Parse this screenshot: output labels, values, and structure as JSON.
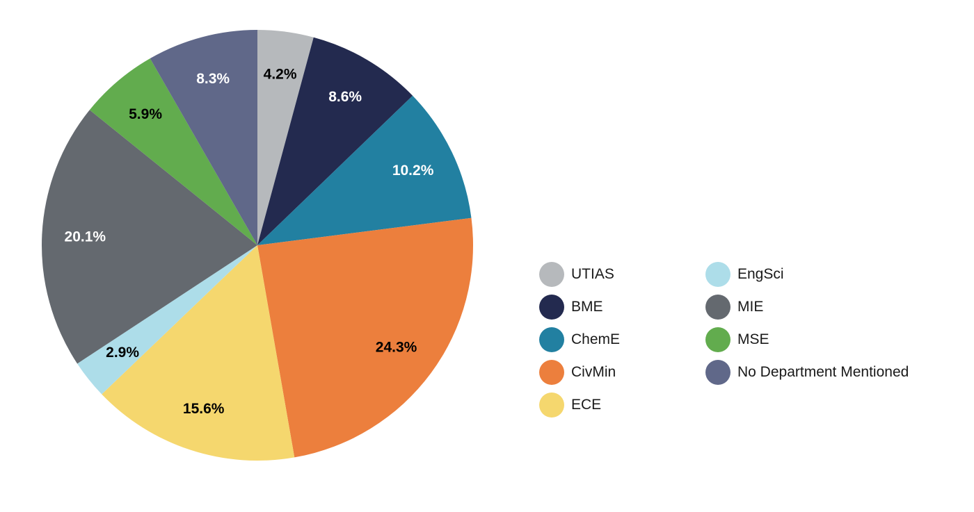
{
  "chart_data": {
    "type": "pie",
    "title": "",
    "legend_position": "right",
    "slices": [
      {
        "label": "UTIAS",
        "value": 4.2,
        "value_label": "4.2%",
        "color": "#b6b9bc",
        "label_color": "#000000"
      },
      {
        "label": "BME",
        "value": 8.6,
        "value_label": "8.6%",
        "color": "#232a4f",
        "label_color": "#ffffff"
      },
      {
        "label": "ChemE",
        "value": 10.2,
        "value_label": "10.2%",
        "color": "#2280a1",
        "label_color": "#ffffff"
      },
      {
        "label": "CivMin",
        "value": 24.3,
        "value_label": "24.3%",
        "color": "#ec7f3d",
        "label_color": "#000000"
      },
      {
        "label": "ECE",
        "value": 15.6,
        "value_label": "15.6%",
        "color": "#f5d76e",
        "label_color": "#000000"
      },
      {
        "label": "EngSci",
        "value": 2.9,
        "value_label": "2.9%",
        "color": "#addde9",
        "label_color": "#000000"
      },
      {
        "label": "MIE",
        "value": 20.1,
        "value_label": "20.1%",
        "color": "#64696f",
        "label_color": "#ffffff"
      },
      {
        "label": "MSE",
        "value": 5.9,
        "value_label": "5.9%",
        "color": "#62ac4e",
        "label_color": "#000000"
      },
      {
        "label": "No Department Mentioned",
        "value": 8.3,
        "value_label": "8.3%",
        "color": "#606889",
        "label_color": "#ffffff"
      }
    ]
  }
}
